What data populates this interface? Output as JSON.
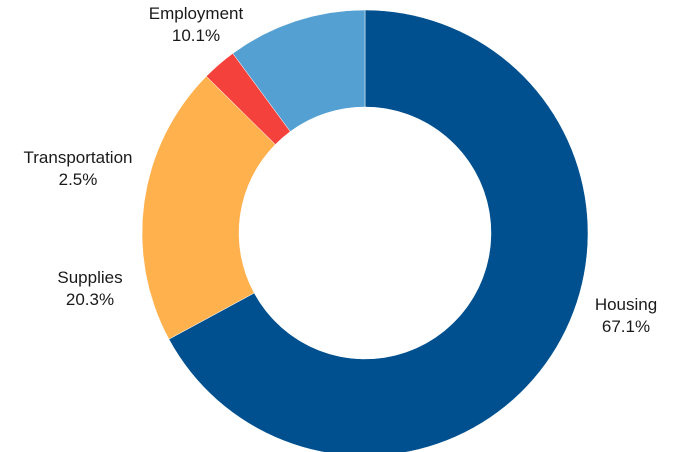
{
  "chart_data": {
    "type": "pie",
    "donut": true,
    "title": "",
    "slices": [
      {
        "name": "Housing",
        "pct_label": "67.1%",
        "value": 67.1,
        "color": "#00508f"
      },
      {
        "name": "Supplies",
        "pct_label": "20.3%",
        "value": 20.3,
        "color": "#ffb14e"
      },
      {
        "name": "Transportation",
        "pct_label": "2.5%",
        "value": 2.5,
        "color": "#f5413b"
      },
      {
        "name": "Employment",
        "pct_label": "10.1%",
        "value": 10.1,
        "color": "#55a0d3"
      }
    ]
  }
}
